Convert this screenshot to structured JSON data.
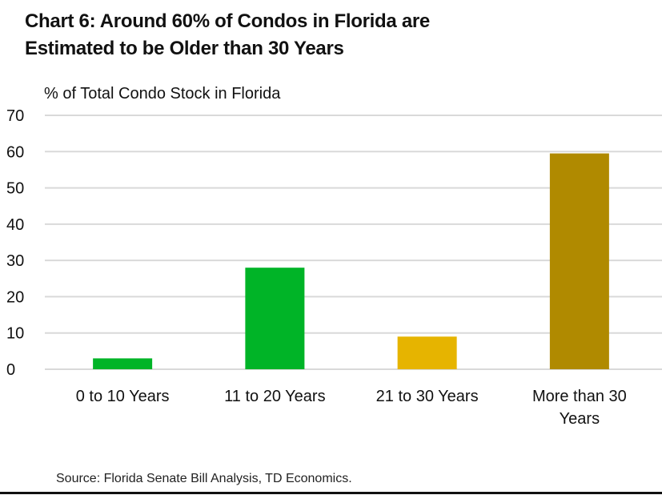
{
  "chart_data": {
    "type": "bar",
    "title": "Chart 6: Around 60% of Condos in Florida are Estimated to be Older than 30 Years",
    "title_lines": [
      "Chart 6: Around 60% of Condos in Florida are",
      "Estimated to be Older than 30 Years"
    ],
    "xlabel": "",
    "ylabel": "% of Total Condo Stock in Florida",
    "categories": [
      "0 to 10 Years",
      "11 to 20 Years",
      "21 to 30 Years",
      "More than 30 Years"
    ],
    "category_lines": [
      [
        "0 to 10 Years"
      ],
      [
        "11 to 20 Years"
      ],
      [
        "21 to 30 Years"
      ],
      [
        "More than 30",
        "Years"
      ]
    ],
    "values": [
      3,
      28,
      9,
      59.5
    ],
    "colors": [
      "#00b427",
      "#00b427",
      "#e6b400",
      "#b08a00"
    ],
    "ylim": [
      0,
      70
    ],
    "yticks": [
      0,
      10,
      20,
      30,
      40,
      50,
      60,
      70
    ],
    "grid": true,
    "legend": "none",
    "gridline_color": "#d9d9d9"
  },
  "source": "Source: Florida Senate Bill Analysis, TD Economics."
}
